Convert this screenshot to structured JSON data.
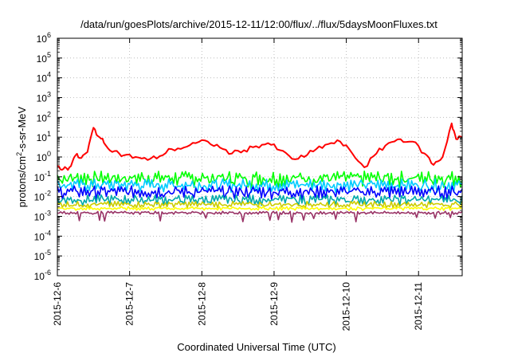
{
  "chart_data": {
    "type": "line",
    "title": "/data/run/goesPlots/archive/2015-12-11/12:00/flux/../flux/5daysMoonFluxes.txt",
    "xlabel": "Coordinated Universal Time (UTC)",
    "ylabel": {
      "base": "protons/cm",
      "sup": "2",
      "rest": "-s-sr-MeV"
    },
    "y_scale": "log",
    "ylim": [
      1e-06,
      1000000.0
    ],
    "y_ticks": [
      {
        "value": 1000000.0,
        "base": "10",
        "exp": "6"
      },
      {
        "value": 100000.0,
        "base": "10",
        "exp": "5"
      },
      {
        "value": 10000.0,
        "base": "10",
        "exp": "4"
      },
      {
        "value": 1000.0,
        "base": "10",
        "exp": "3"
      },
      {
        "value": 100.0,
        "base": "10",
        "exp": "2"
      },
      {
        "value": 10.0,
        "base": "10",
        "exp": "1"
      },
      {
        "value": 1.0,
        "base": "10",
        "exp": "0"
      },
      {
        "value": 0.1,
        "base": "10",
        "exp": "-1"
      },
      {
        "value": 0.01,
        "base": "10",
        "exp": "-2"
      },
      {
        "value": 0.001,
        "base": "10",
        "exp": "-3"
      },
      {
        "value": 0.0001,
        "base": "10",
        "exp": "-4"
      },
      {
        "value": 1e-05,
        "base": "10",
        "exp": "-5"
      },
      {
        "value": 1e-06,
        "base": "10",
        "exp": "-6"
      }
    ],
    "xlim": [
      "2015-12-06",
      "2015-12-11 14:30"
    ],
    "x_ticks": [
      "2015-12-6",
      "2015-12-7",
      "2015-12-8",
      "2015-12-9",
      "2015-12-10",
      "2015-12-11"
    ],
    "grid": true,
    "series": [
      {
        "color": "#ff0000",
        "points": [
          [
            "2015-12-06 00:00",
            0.35
          ],
          [
            "2015-12-06 02:00",
            0.25
          ],
          [
            "2015-12-06 04:00",
            0.3
          ],
          [
            "2015-12-06 06:00",
            1.2
          ],
          [
            "2015-12-06 08:00",
            0.9
          ],
          [
            "2015-12-06 10:00",
            1.8
          ],
          [
            "2015-12-06 12:00",
            30
          ],
          [
            "2015-12-06 14:00",
            10
          ],
          [
            "2015-12-06 16:00",
            4
          ],
          [
            "2015-12-06 19:00",
            2
          ],
          [
            "2015-12-06 22:00",
            1.2
          ],
          [
            "2015-12-07 02:00",
            1.0
          ],
          [
            "2015-12-07 06:00",
            0.7
          ],
          [
            "2015-12-07 10:00",
            1.1
          ],
          [
            "2015-12-07 14:00",
            2.5
          ],
          [
            "2015-12-07 18:00",
            3
          ],
          [
            "2015-12-07 22:00",
            5
          ],
          [
            "2015-12-08 02:00",
            6
          ],
          [
            "2015-12-08 06:00",
            3
          ],
          [
            "2015-12-08 10:00",
            1.5
          ],
          [
            "2015-12-08 14:00",
            2.2
          ],
          [
            "2015-12-08 18:00",
            3.5
          ],
          [
            "2015-12-08 22:00",
            5
          ],
          [
            "2015-12-09 02:00",
            2.2
          ],
          [
            "2015-12-09 06:00",
            0.8
          ],
          [
            "2015-12-09 10:00",
            1.0
          ],
          [
            "2015-12-09 14:00",
            2.5
          ],
          [
            "2015-12-09 18:00",
            4.5
          ],
          [
            "2015-12-09 22:00",
            6
          ],
          [
            "2015-12-10 02:00",
            1.5
          ],
          [
            "2015-12-10 06:00",
            0.3
          ],
          [
            "2015-12-10 10:00",
            1.5
          ],
          [
            "2015-12-10 14:00",
            5
          ],
          [
            "2015-12-10 18:00",
            8
          ],
          [
            "2015-12-10 22:00",
            6
          ],
          [
            "2015-12-11 02:00",
            1.5
          ],
          [
            "2015-12-11 05:00",
            0.4
          ],
          [
            "2015-12-11 08:00",
            1.0
          ],
          [
            "2015-12-11 11:00",
            50
          ],
          [
            "2015-12-11 12:30",
            8
          ],
          [
            "2015-12-11 14:30",
            10
          ]
        ]
      },
      {
        "color": "#00ff00",
        "level": 0.09,
        "jitter": 0.6
      },
      {
        "color": "#00ccff",
        "level": 0.04,
        "jitter": 0.5
      },
      {
        "color": "#0000ff",
        "level": 0.018,
        "jitter": 0.5
      },
      {
        "color": "#00aaaa",
        "level": 0.007,
        "jitter": 0.4
      },
      {
        "color": "#cccc00",
        "level": 0.004,
        "jitter": 0.25
      },
      {
        "color": "#ffff00",
        "level": 0.0025,
        "jitter": 0.15
      },
      {
        "color": "#993366",
        "level": 0.0015,
        "jitter": 0.12
      }
    ]
  }
}
